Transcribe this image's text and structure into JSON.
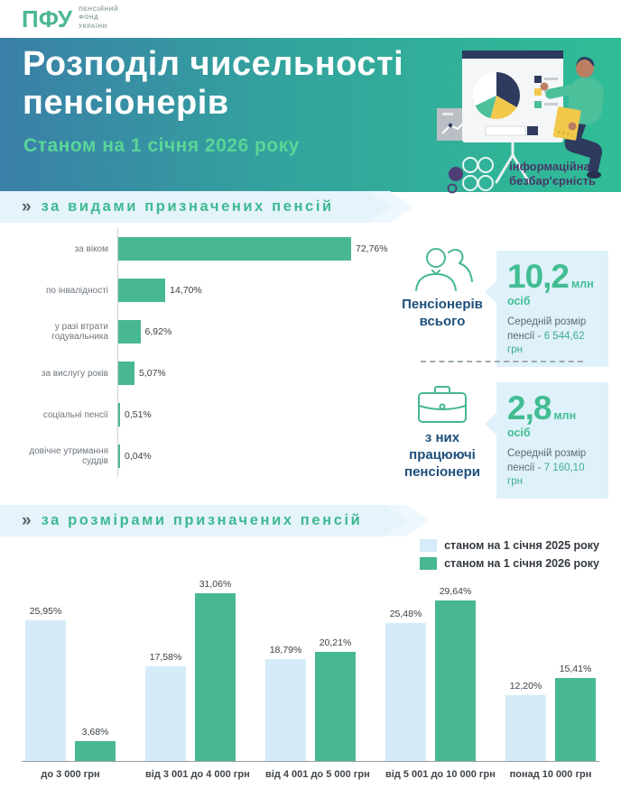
{
  "logo": {
    "abbr": "ПФУ",
    "org_lines": [
      "ПЕНСІЙНИЙ",
      "ФОНД",
      "УКРАЇНИ"
    ]
  },
  "header": {
    "title_lines": [
      "Розподіл чисельності",
      "пенсіонерів"
    ],
    "subtitle": "Станом на 1 січня 2026 року",
    "accessibility_badge": {
      "lines": [
        "інформаційна",
        "безбар'єрність"
      ]
    }
  },
  "sections": {
    "by_type": {
      "marker": "»",
      "title": "за видами призначених пенсій"
    },
    "by_size": {
      "marker": "»",
      "title": "за розмірами призначених пенсій"
    }
  },
  "stats": {
    "total": {
      "label_lines": [
        "Пенсіонерів",
        "всього"
      ],
      "value": "10,2",
      "unit": "млн осіб",
      "desc_line1": "Середній розмір",
      "desc_line2_prefix": "пенсії - ",
      "desc_value": "6 544,62 грн"
    },
    "working": {
      "label_lines": [
        "з них",
        "працюючі",
        "пенсіонери"
      ],
      "value": "2,8",
      "unit": "млн осіб",
      "desc_line1": "Середній розмір",
      "desc_line2_prefix": "пенсії - ",
      "desc_value": "7 160,10 грн"
    }
  },
  "colors": {
    "header_gradient_left": "#3a7fa8",
    "header_gradient_right": "#2fbd96",
    "accent_green": "#48b890",
    "light_blue_bar": "#d5ecf8",
    "section_band_bg": "#e5f3fb",
    "callout_bg": "#dff1fb",
    "dark_blue_text": "#1d4f7a",
    "subtitle_green": "#5ad598",
    "badge_purple": "#453768"
  },
  "chart_data": [
    {
      "type": "bar",
      "orientation": "horizontal",
      "title": "за видами призначених пенсій",
      "categories": [
        "за віком",
        "по інвалідності",
        "у разі втрати годувальника",
        "за вислугу років",
        "соціальні пенсії",
        "довічне утримання суддів"
      ],
      "values": [
        72.76,
        14.7,
        6.92,
        5.07,
        0.51,
        0.04
      ],
      "value_labels": [
        "72,76%",
        "14,70%",
        "6,92%",
        "5,07%",
        "0,51%",
        "0,04%"
      ],
      "xlabel": "",
      "ylabel": "",
      "xlim": [
        0,
        80
      ],
      "grid": false,
      "bar_color": "#48b890"
    },
    {
      "type": "bar",
      "orientation": "vertical",
      "title": "за розмірами призначених пенсій",
      "categories": [
        "до 3 000 грн",
        "від 3 001 до 4 000 грн",
        "від 4 001 до 5 000 грн",
        "від 5 001 до 10 000 грн",
        "понад 10 000 грн"
      ],
      "series": [
        {
          "name": "станом на 1 січня 2025 року",
          "color": "#d5ecf8",
          "values": [
            25.95,
            17.58,
            18.79,
            25.48,
            12.2
          ],
          "value_labels": [
            "25,95%",
            "17,58%",
            "18,79%",
            "25,48%",
            "12,20%"
          ]
        },
        {
          "name": "станом на 1 січня 2026 року",
          "color": "#48b890",
          "values": [
            3.68,
            31.06,
            20.21,
            29.64,
            15.41
          ],
          "value_labels": [
            "3,68%",
            "31,06%",
            "20,21%",
            "29,64%",
            "15,41%"
          ]
        }
      ],
      "xlabel": "",
      "ylabel": "",
      "ylim": [
        0,
        35
      ],
      "grid": false,
      "legend_position": "top-right"
    }
  ]
}
